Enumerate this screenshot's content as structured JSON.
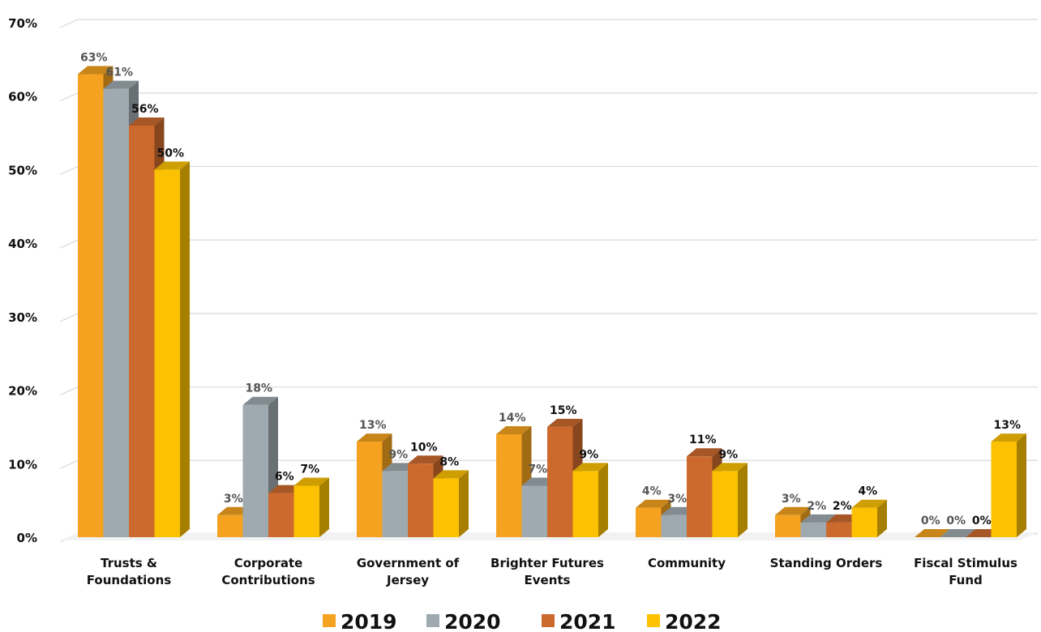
{
  "chart_data": {
    "type": "bar",
    "style": "3d-clustered-column",
    "categories": [
      [
        "Trusts &",
        "Foundations"
      ],
      [
        "Corporate",
        "Contributions"
      ],
      [
        "Government of",
        "Jersey"
      ],
      [
        "Brighter Futures",
        "Events"
      ],
      [
        "Community"
      ],
      [
        "Standing Orders"
      ],
      [
        "Fiscal Stimulus",
        "Fund"
      ]
    ],
    "series": [
      {
        "name": "2019",
        "color": "#F4A21F",
        "values": [
          63,
          3,
          13,
          14,
          4,
          3,
          0
        ],
        "labels": [
          "63%",
          "3%",
          "13%",
          "14%",
          "4%",
          "3%",
          "0%"
        ]
      },
      {
        "name": "2020",
        "color": "#9EAAB0",
        "values": [
          61,
          18,
          9,
          7,
          3,
          2,
          0
        ],
        "labels": [
          "61%",
          "18%",
          "9%",
          "7%",
          "3%",
          "2%",
          "0%"
        ]
      },
      {
        "name": "2021",
        "color": "#CC6A2E",
        "values": [
          56,
          6,
          10,
          15,
          11,
          2,
          0
        ],
        "labels": [
          "56%",
          "6%",
          "10%",
          "15%",
          "11%",
          "2%",
          "0%"
        ]
      },
      {
        "name": "2022",
        "color": "#FBC102",
        "values": [
          50,
          7,
          8,
          9,
          9,
          4,
          13
        ],
        "labels": [
          "50%",
          "7%",
          "8%",
          "9%",
          "9%",
          "4%",
          "13%"
        ]
      }
    ],
    "y_ticks": [
      "0%",
      "10%",
      "20%",
      "30%",
      "40%",
      "50%",
      "60%",
      "70%"
    ],
    "ylim": [
      0,
      70
    ],
    "grid": true,
    "legend_position": "bottom"
  }
}
